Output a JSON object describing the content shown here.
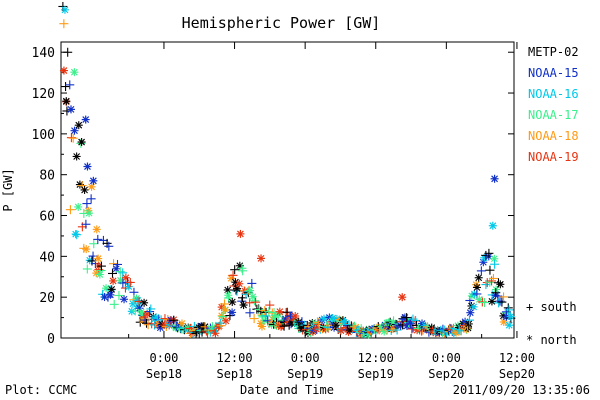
{
  "chart_data": {
    "type": "scatter",
    "title": "Hemispheric Power [GW]",
    "ylabel": "P [GW]",
    "xlabel": "Date and Time",
    "ylim": [
      0,
      145
    ],
    "xlim_hours": [
      -17.5,
      59.5
    ],
    "yticks": [
      0,
      20,
      40,
      60,
      80,
      100,
      120,
      140
    ],
    "xticks": [
      {
        "hour": 0,
        "time": "0:00",
        "date": "Sep18"
      },
      {
        "hour": 12,
        "time": "12:00",
        "date": "Sep18"
      },
      {
        "hour": 24,
        "time": "0:00",
        "date": "Sep19"
      },
      {
        "hour": 36,
        "time": "12:00",
        "date": "Sep19"
      },
      {
        "hour": 48,
        "time": "0:00",
        "date": "Sep20"
      },
      {
        "hour": 60,
        "time": "12:00",
        "date": "Sep20"
      }
    ],
    "grid": false,
    "legend_position": "right",
    "series": [
      {
        "name": "METP-02",
        "color": "#000000"
      },
      {
        "name": "NOAA-15",
        "color": "#1030c8"
      },
      {
        "name": "NOAA-16",
        "color": "#00c8e8"
      },
      {
        "name": "NOAA-17",
        "color": "#3cf08c"
      },
      {
        "name": "NOAA-18",
        "color": "#ff9a14"
      },
      {
        "name": "NOAA-19",
        "color": "#e83410"
      }
    ],
    "marker_legend": [
      {
        "symbol": "+",
        "label": "south"
      },
      {
        "symbol": "*",
        "label": "north"
      }
    ],
    "footer_left": "Plot: CCMC",
    "footer_right": "2011/09/20 13:35:06"
  }
}
